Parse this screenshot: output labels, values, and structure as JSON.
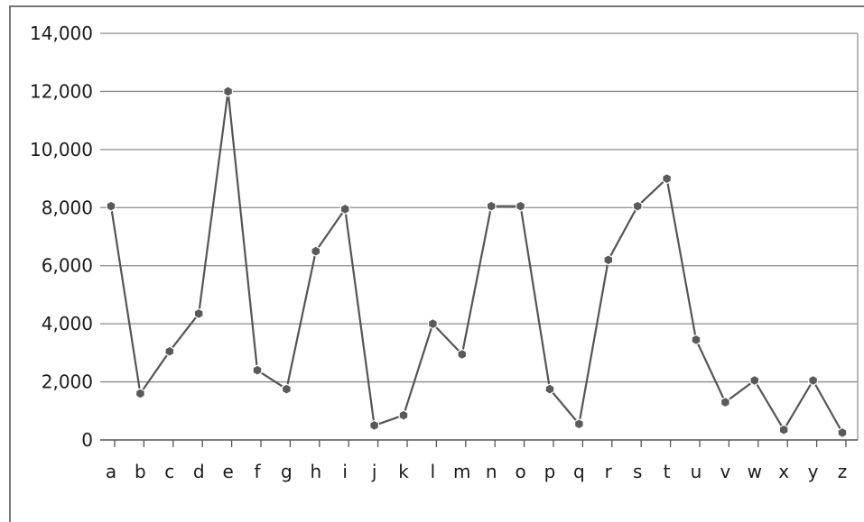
{
  "chart_data": {
    "type": "line",
    "title": "",
    "xlabel": "",
    "ylabel": "",
    "categories": [
      "a",
      "b",
      "c",
      "d",
      "e",
      "f",
      "g",
      "h",
      "i",
      "j",
      "k",
      "l",
      "m",
      "n",
      "o",
      "p",
      "q",
      "r",
      "s",
      "t",
      "u",
      "v",
      "w",
      "x",
      "y",
      "z"
    ],
    "series": [
      {
        "values": [
          8050,
          1600,
          3050,
          4350,
          12000,
          2400,
          1750,
          6500,
          7950,
          500,
          850,
          4000,
          2950,
          8050,
          8050,
          1750,
          550,
          6200,
          8050,
          9000,
          3450,
          1300,
          2050,
          350,
          2050,
          250
        ]
      }
    ],
    "ylim": [
      0,
      14000
    ],
    "yticks": [
      "0",
      "2,000",
      "4,000",
      "6,000",
      "8,000",
      "10,000",
      "12,000",
      "14,000"
    ],
    "grid": true,
    "legend": "none",
    "colors": {
      "line": "#555555",
      "marker": "#5a5a5a",
      "grid": "#8a8a8a",
      "axis": "#555555",
      "border": "#777777"
    }
  }
}
